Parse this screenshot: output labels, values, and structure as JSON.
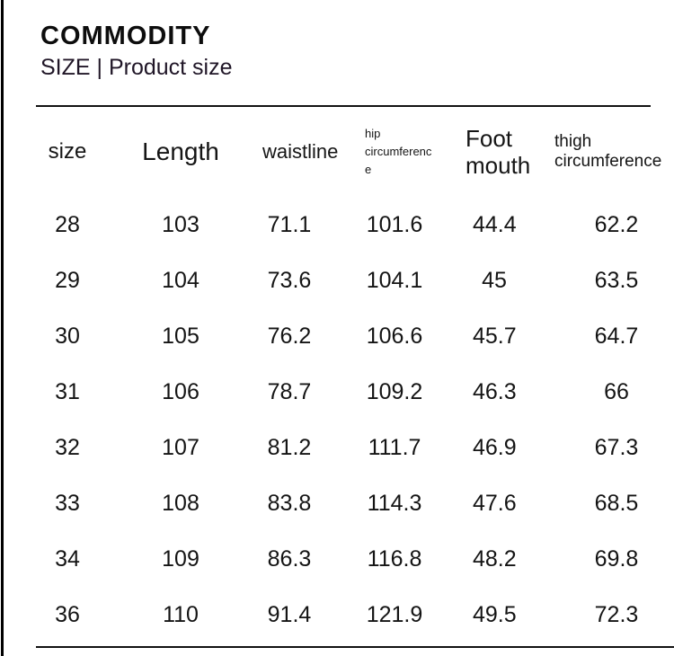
{
  "page": {
    "title": "COMMODITY",
    "subtitle": "SIZE | Product size"
  },
  "table": {
    "columns": [
      {
        "id": "size",
        "label": "size"
      },
      {
        "id": "length",
        "label": "Length"
      },
      {
        "id": "waistline",
        "label": "waistline"
      },
      {
        "id": "hip",
        "label": "hip circumference"
      },
      {
        "id": "foot",
        "label": "Foot mouth"
      },
      {
        "id": "thigh",
        "label": "thigh circumference"
      }
    ],
    "rows": [
      [
        "28",
        "103",
        "71.1",
        "101.6",
        "44.4",
        "62.2"
      ],
      [
        "29",
        "104",
        "73.6",
        "104.1",
        "45",
        "63.5"
      ],
      [
        "30",
        "105",
        "76.2",
        "106.6",
        "45.7",
        "64.7"
      ],
      [
        "31",
        "106",
        "78.7",
        "109.2",
        "46.3",
        "66"
      ],
      [
        "32",
        "107",
        "81.2",
        "111.7",
        "46.9",
        "67.3"
      ],
      [
        "33",
        "108",
        "83.8",
        "114.3",
        "47.6",
        "68.5"
      ],
      [
        "34",
        "109",
        "86.3",
        "116.8",
        "48.2",
        "69.8"
      ],
      [
        "36",
        "110",
        "91.4",
        "121.9",
        "49.5",
        "72.3"
      ]
    ]
  },
  "chart_data": {
    "type": "table",
    "title": "COMMODITY SIZE | Product size",
    "columns": [
      "size",
      "Length",
      "waistline",
      "hip circumference",
      "Foot mouth",
      "thigh circumference"
    ],
    "rows": [
      [
        28,
        103,
        71.1,
        101.6,
        44.4,
        62.2
      ],
      [
        29,
        104,
        73.6,
        104.1,
        45,
        63.5
      ],
      [
        30,
        105,
        76.2,
        106.6,
        45.7,
        64.7
      ],
      [
        31,
        106,
        78.7,
        109.2,
        46.3,
        66
      ],
      [
        32,
        107,
        81.2,
        111.7,
        46.9,
        67.3
      ],
      [
        33,
        108,
        83.8,
        114.3,
        47.6,
        68.5
      ],
      [
        34,
        109,
        86.3,
        116.8,
        48.2,
        69.8
      ],
      [
        36,
        110,
        91.4,
        121.9,
        49.5,
        72.3
      ]
    ],
    "legend_position": "none",
    "grid": false
  },
  "colors": {
    "background": "#ffffff",
    "text": "#121212",
    "rule": "#111111",
    "left_border": "#000000"
  }
}
